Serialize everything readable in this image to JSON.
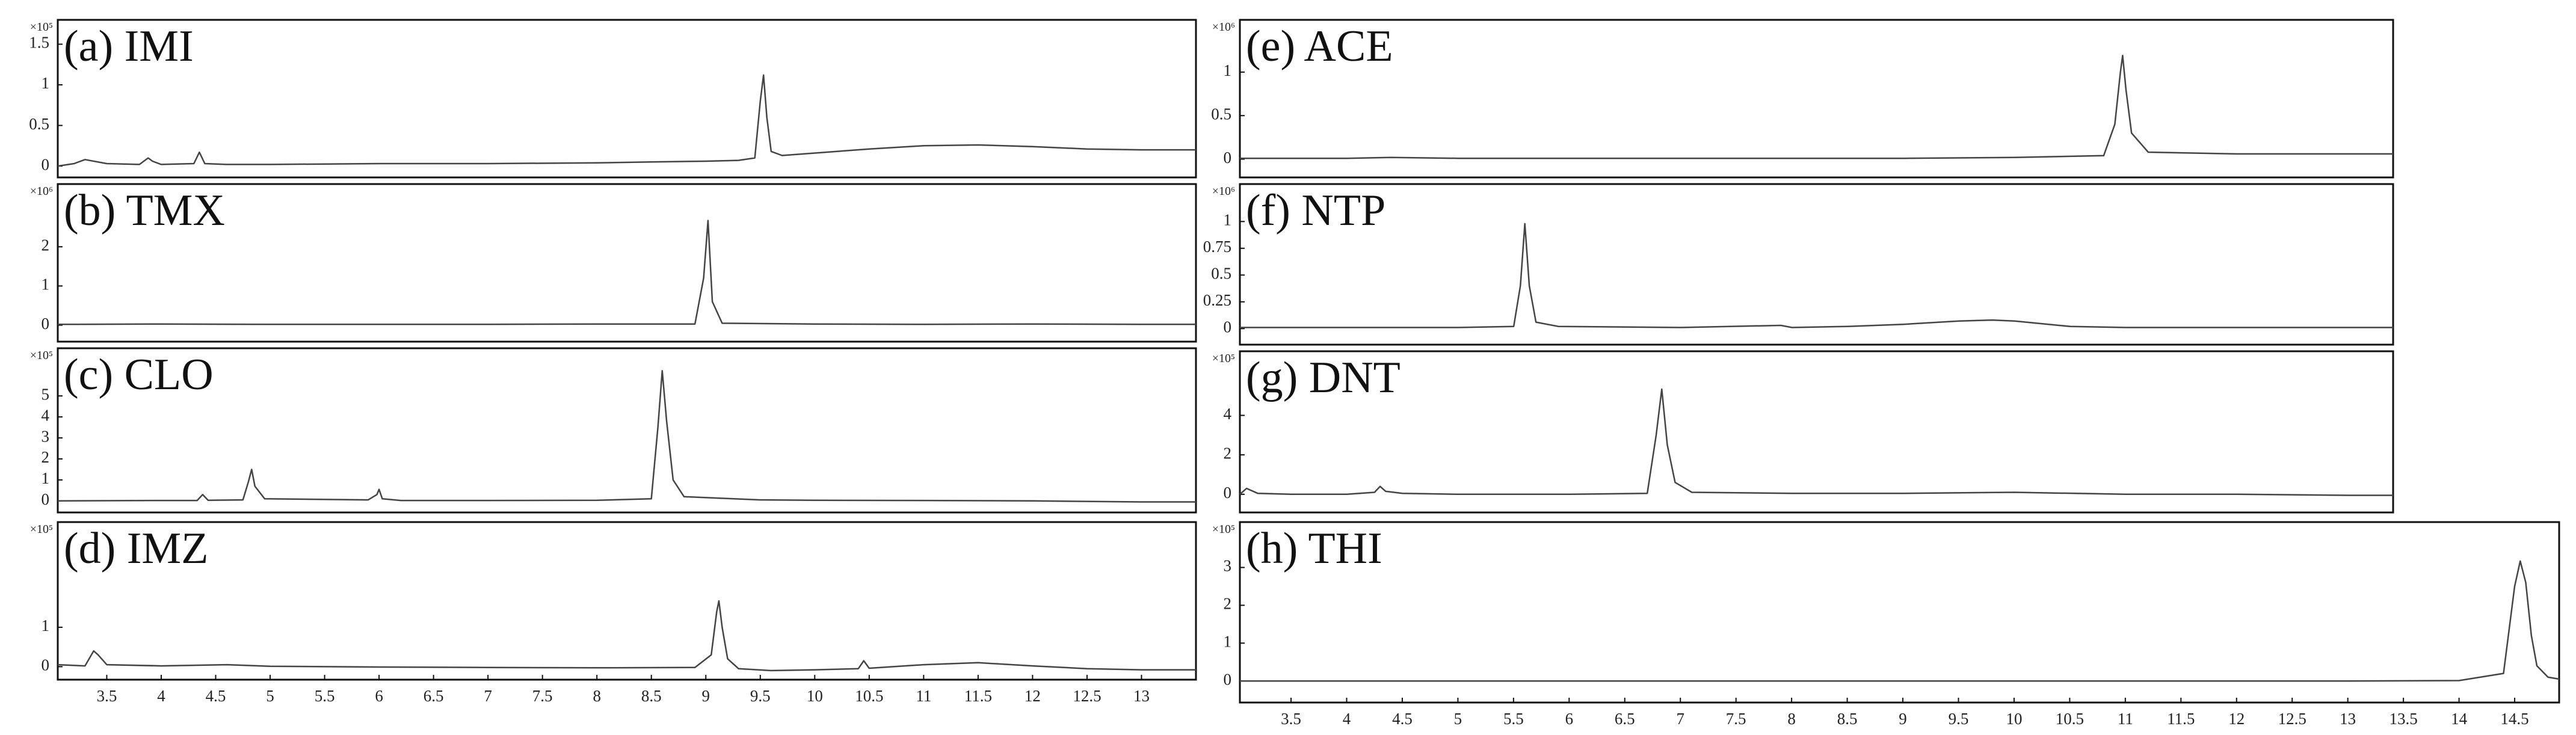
{
  "chart_data": [
    {
      "type": "line",
      "title": "(a) IMI",
      "y_scale_label": "×10⁵",
      "color": "#444444",
      "x": [
        3.05,
        3.2,
        3.3,
        3.5,
        3.8,
        3.88,
        3.92,
        4.0,
        4.3,
        4.35,
        4.4,
        4.6,
        5,
        6,
        7,
        8,
        8.5,
        9,
        9.3,
        9.45,
        9.5,
        9.53,
        9.56,
        9.6,
        9.7,
        10,
        10.5,
        11,
        11.5,
        12,
        12.5,
        13,
        13.5
      ],
      "values": [
        0,
        0.03,
        0.08,
        0.03,
        0.02,
        0.1,
        0.06,
        0.02,
        0.03,
        0.17,
        0.03,
        0.02,
        0.02,
        0.03,
        0.03,
        0.04,
        0.05,
        0.06,
        0.07,
        0.1,
        0.8,
        1.12,
        0.6,
        0.18,
        0.13,
        0.16,
        0.21,
        0.25,
        0.26,
        0.24,
        0.21,
        0.2,
        0.2
      ],
      "xlim": [
        3.05,
        13.5
      ],
      "ylim": [
        -0.14,
        1.8
      ],
      "yticks": [
        0,
        0.5,
        1,
        1.5
      ]
    },
    {
      "type": "line",
      "title": "(b) TMX",
      "y_scale_label": "×10⁶",
      "color": "#444444",
      "x": [
        3.05,
        4,
        5,
        6,
        7,
        8,
        8.9,
        8.98,
        9.02,
        9.06,
        9.15,
        10,
        11,
        12,
        13,
        13.5
      ],
      "values": [
        0.02,
        0.03,
        0.02,
        0.02,
        0.02,
        0.03,
        0.03,
        1.2,
        2.67,
        0.6,
        0.05,
        0.03,
        0.02,
        0.03,
        0.02,
        0.02
      ],
      "xlim": [
        3.05,
        13.5
      ],
      "ylim": [
        -0.42,
        3.6
      ],
      "yticks": [
        0,
        1,
        2
      ]
    },
    {
      "type": "line",
      "title": "(c) CLO",
      "y_scale_label": "×10⁵",
      "color": "#444444",
      "x": [
        3.05,
        4,
        4.33,
        4.38,
        4.43,
        4.75,
        4.8,
        4.83,
        4.86,
        4.95,
        5.9,
        5.98,
        6.0,
        6.03,
        6.2,
        7,
        8,
        8.5,
        8.56,
        8.6,
        8.64,
        8.7,
        8.8,
        9.5,
        10,
        11,
        12,
        13,
        13.5
      ],
      "values": [
        0,
        0.02,
        0.02,
        0.3,
        0.03,
        0.05,
        0.9,
        1.5,
        0.7,
        0.1,
        0.05,
        0.3,
        0.55,
        0.1,
        0.02,
        0.02,
        0.03,
        0.1,
        3.5,
        6.2,
        3.8,
        1.0,
        0.2,
        0.05,
        0.03,
        0.02,
        0,
        -0.05,
        -0.05
      ],
      "xlim": [
        3.05,
        13.5
      ],
      "ylim": [
        -0.55,
        7.27
      ],
      "yticks": [
        0,
        1,
        2,
        3,
        4,
        5
      ]
    },
    {
      "type": "line",
      "title": "(d) IMZ",
      "y_scale_label": "×10⁵",
      "color": "#444444",
      "x": [
        3.05,
        3.3,
        3.38,
        3.42,
        3.5,
        4,
        4.6,
        5,
        6,
        7,
        8,
        8.9,
        9.05,
        9.1,
        9.12,
        9.15,
        9.2,
        9.3,
        9.6,
        10,
        10.4,
        10.45,
        10.5,
        11,
        11.5,
        12,
        12.5,
        13,
        13.5
      ],
      "values": [
        0.05,
        0.02,
        0.4,
        0.3,
        0.05,
        0.02,
        0.05,
        0.01,
        -0.01,
        -0.02,
        -0.03,
        -0.02,
        0.3,
        1.4,
        1.67,
        1.0,
        0.2,
        -0.05,
        -0.1,
        -0.08,
        -0.05,
        0.15,
        -0.04,
        0.05,
        0.1,
        0.02,
        -0.05,
        -0.08,
        -0.08
      ],
      "xlim": [
        3.05,
        13.5
      ],
      "ylim": [
        -0.33,
        3.67
      ],
      "yticks": [
        0,
        1
      ],
      "xticks": [
        3.5,
        4,
        4.5,
        5,
        5.5,
        6,
        6.5,
        7,
        7.5,
        8,
        8.5,
        9,
        9.5,
        10,
        10.5,
        11,
        11.5,
        12,
        12.5,
        13
      ]
    },
    {
      "type": "line",
      "title": "(e) ACE",
      "y_scale_label": "×10⁶",
      "color": "#444444",
      "x": [
        3.04,
        4,
        4.4,
        5,
        6,
        7,
        8,
        9,
        10,
        10.8,
        10.9,
        10.95,
        10.97,
        11.0,
        11.05,
        11.2,
        12,
        13,
        13.4
      ],
      "values": [
        0.01,
        0.01,
        0.02,
        0.01,
        0.01,
        0.01,
        0.01,
        0.01,
        0.02,
        0.04,
        0.4,
        1.0,
        1.19,
        0.8,
        0.3,
        0.08,
        0.06,
        0.06,
        0.06
      ],
      "xlim": [
        3.04,
        13.4
      ],
      "ylim": [
        -0.21,
        1.6
      ],
      "yticks": [
        0,
        0.5,
        1
      ]
    },
    {
      "type": "line",
      "title": "(f) NTP",
      "y_scale_label": "×10⁶",
      "color": "#444444",
      "x": [
        3.04,
        4,
        5,
        5.5,
        5.56,
        5.6,
        5.64,
        5.7,
        5.9,
        7,
        7.9,
        8,
        8.5,
        9,
        9.5,
        9.8,
        10,
        10.4,
        10.5,
        11,
        12,
        13,
        13.4
      ],
      "values": [
        0.01,
        0.01,
        0.01,
        0.02,
        0.4,
        0.98,
        0.4,
        0.06,
        0.02,
        0.01,
        0.03,
        0.01,
        0.02,
        0.04,
        0.07,
        0.08,
        0.07,
        0.03,
        0.02,
        0.01,
        0.01,
        0.01,
        0.01
      ],
      "xlim": [
        3.04,
        13.4
      ],
      "ylim": [
        -0.15,
        1.35
      ],
      "yticks": [
        0,
        0.25,
        0.5,
        0.75,
        1
      ]
    },
    {
      "type": "line",
      "title": "(g) DNT",
      "y_scale_label": "×10⁵",
      "color": "#444444",
      "x": [
        3.04,
        3.1,
        3.2,
        3.5,
        4,
        4.25,
        4.3,
        4.35,
        4.5,
        5,
        6,
        6.7,
        6.78,
        6.83,
        6.88,
        6.95,
        7.1,
        8,
        9,
        10,
        11,
        12,
        13,
        13.4
      ],
      "values": [
        0,
        0.3,
        0.05,
        0,
        0,
        0.1,
        0.4,
        0.15,
        0.05,
        0,
        0,
        0.05,
        3.0,
        5.33,
        2.5,
        0.6,
        0.1,
        0.05,
        0.05,
        0.1,
        0,
        0,
        -0.05,
        -0.05
      ],
      "xlim": [
        3.04,
        13.4
      ],
      "ylim": [
        -0.92,
        7.25
      ],
      "yticks": [
        0,
        2,
        4
      ]
    },
    {
      "type": "line",
      "title": "(h) THI",
      "y_scale_label": "×10⁵",
      "color": "#444444",
      "x": [
        3.04,
        4,
        5,
        6,
        7,
        8,
        9,
        10,
        11,
        12,
        13,
        14,
        14.4,
        14.5,
        14.55,
        14.6,
        14.65,
        14.7,
        14.8,
        14.9
      ],
      "values": [
        0,
        0,
        0,
        0,
        0,
        0,
        0,
        0,
        0,
        0,
        0,
        0.01,
        0.2,
        2.5,
        3.17,
        2.6,
        1.2,
        0.4,
        0.1,
        0.05
      ],
      "xlim": [
        3.04,
        14.9
      ],
      "ylim": [
        -0.57,
        4.2
      ],
      "yticks": [
        0,
        1,
        2,
        3
      ],
      "xticks": [
        3.5,
        4,
        4.5,
        5,
        5.5,
        6,
        6.5,
        7,
        7.5,
        8,
        8.5,
        9,
        9.5,
        10,
        10.5,
        11,
        11.5,
        12,
        12.5,
        13,
        13.5,
        14,
        14.5
      ]
    }
  ]
}
